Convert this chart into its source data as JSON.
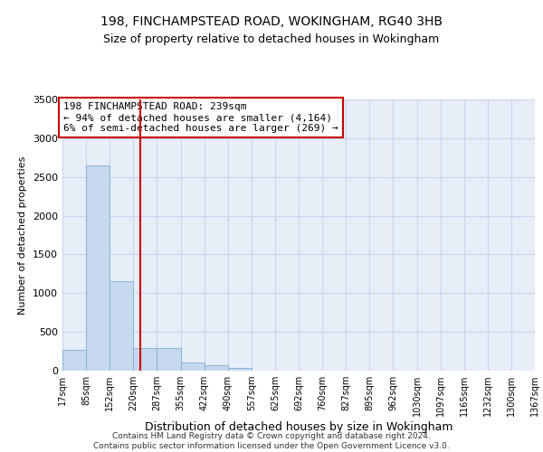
{
  "title": "198, FINCHAMPSTEAD ROAD, WOKINGHAM, RG40 3HB",
  "subtitle": "Size of property relative to detached houses in Wokingham",
  "xlabel": "Distribution of detached houses by size in Wokingham",
  "ylabel": "Number of detached properties",
  "footer_line1": "Contains HM Land Registry data © Crown copyright and database right 2024.",
  "footer_line2": "Contains public sector information licensed under the Open Government Licence v3.0.",
  "bar_color": "#c5d8ee",
  "bar_edge_color": "#7aaed4",
  "grid_color": "#c8d4e8",
  "background_color": "#e8eef8",
  "annotation_box_color": "#cc0000",
  "vline_color": "#cc0000",
  "bin_edges": [
    17,
    85,
    152,
    220,
    287,
    355,
    422,
    490,
    557,
    625,
    692,
    760,
    827,
    895,
    962,
    1030,
    1097,
    1165,
    1232,
    1300,
    1367
  ],
  "bar_heights": [
    270,
    2650,
    1150,
    295,
    295,
    100,
    65,
    40,
    5,
    5,
    2,
    0,
    0,
    0,
    0,
    0,
    0,
    0,
    0,
    0
  ],
  "property_size": 239,
  "annotation_line1": "198 FINCHAMPSTEAD ROAD: 239sqm",
  "annotation_line2": "← 94% of detached houses are smaller (4,164)",
  "annotation_line3": "6% of semi-detached houses are larger (269) →",
  "ylim": [
    0,
    3500
  ],
  "yticks": [
    0,
    500,
    1000,
    1500,
    2000,
    2500,
    3000,
    3500
  ],
  "tick_labels": [
    "17sqm",
    "85sqm",
    "152sqm",
    "220sqm",
    "287sqm",
    "355sqm",
    "422sqm",
    "490sqm",
    "557sqm",
    "625sqm",
    "692sqm",
    "760sqm",
    "827sqm",
    "895sqm",
    "962sqm",
    "1030sqm",
    "1097sqm",
    "1165sqm",
    "1232sqm",
    "1300sqm",
    "1367sqm"
  ]
}
